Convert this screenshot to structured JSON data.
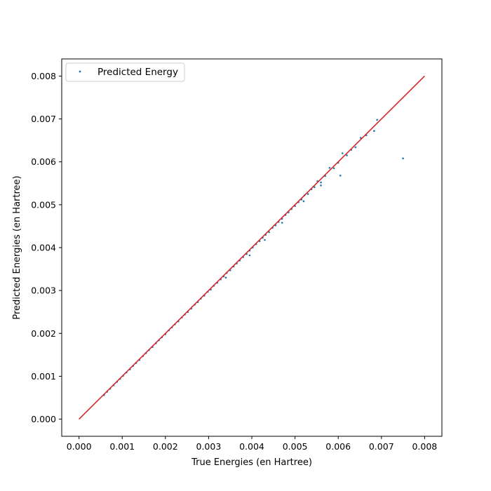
{
  "chart_data": {
    "type": "scatter",
    "title": "",
    "xlabel": "True Energies (en Hartree)",
    "ylabel": "Predicted Energies (en Hartree)",
    "xlim": [
      -0.0004,
      0.0084
    ],
    "ylim": [
      -0.0004,
      0.0084
    ],
    "xticks": [
      0.0,
      0.001,
      0.002,
      0.003,
      0.004,
      0.005,
      0.006,
      0.007,
      0.008
    ],
    "yticks": [
      0.0,
      0.001,
      0.002,
      0.003,
      0.004,
      0.005,
      0.006,
      0.007,
      0.008
    ],
    "xtick_labels": [
      "0.000",
      "0.001",
      "0.002",
      "0.003",
      "0.004",
      "0.005",
      "0.006",
      "0.007",
      "0.008"
    ],
    "ytick_labels": [
      "0.000",
      "0.001",
      "0.002",
      "0.003",
      "0.004",
      "0.005",
      "0.006",
      "0.007",
      "0.008"
    ],
    "grid": false,
    "legend": {
      "placement": "top-left",
      "entries": [
        "Predicted Energy"
      ]
    },
    "series": [
      {
        "name": "Predicted Energy",
        "kind": "scatter",
        "color": "#1f77b4",
        "points": [
          [
            0.00058,
            0.00056
          ],
          [
            0.00065,
            0.00064
          ],
          [
            0.00072,
            0.00071
          ],
          [
            0.0008,
            0.00079
          ],
          [
            0.00088,
            0.00087
          ],
          [
            0.00095,
            0.00094
          ],
          [
            0.00102,
            0.00101
          ],
          [
            0.0011,
            0.00109
          ],
          [
            0.00118,
            0.00116
          ],
          [
            0.00125,
            0.00124
          ],
          [
            0.00132,
            0.00131
          ],
          [
            0.0014,
            0.00138
          ],
          [
            0.00148,
            0.00147
          ],
          [
            0.00155,
            0.00154
          ],
          [
            0.00162,
            0.00161
          ],
          [
            0.0017,
            0.00168
          ],
          [
            0.00178,
            0.00177
          ],
          [
            0.00185,
            0.00184
          ],
          [
            0.00192,
            0.00191
          ],
          [
            0.002,
            0.00198
          ],
          [
            0.00208,
            0.00207
          ],
          [
            0.00215,
            0.00214
          ],
          [
            0.00222,
            0.00221
          ],
          [
            0.0023,
            0.00228
          ],
          [
            0.00238,
            0.00237
          ],
          [
            0.00245,
            0.00244
          ],
          [
            0.00252,
            0.0025
          ],
          [
            0.0026,
            0.00258
          ],
          [
            0.00268,
            0.00267
          ],
          [
            0.00275,
            0.00273
          ],
          [
            0.00282,
            0.00281
          ],
          [
            0.0029,
            0.00288
          ],
          [
            0.00298,
            0.00297
          ],
          [
            0.00305,
            0.00302
          ],
          [
            0.00312,
            0.00311
          ],
          [
            0.0032,
            0.00318
          ],
          [
            0.00328,
            0.00326
          ],
          [
            0.00335,
            0.00333
          ],
          [
            0.00342,
            0.00341
          ],
          [
            0.0035,
            0.00347
          ],
          [
            0.00358,
            0.00356
          ],
          [
            0.00365,
            0.00363
          ],
          [
            0.00372,
            0.0037
          ],
          [
            0.0038,
            0.00378
          ],
          [
            0.00388,
            0.00385
          ],
          [
            0.00395,
            0.00393
          ],
          [
            0.00402,
            0.004
          ],
          [
            0.0041,
            0.00408
          ],
          [
            0.00418,
            0.00415
          ],
          [
            0.00425,
            0.00423
          ],
          [
            0.00432,
            0.0043
          ],
          [
            0.0044,
            0.00436
          ],
          [
            0.00448,
            0.00446
          ],
          [
            0.00455,
            0.00452
          ],
          [
            0.00462,
            0.0046
          ],
          [
            0.0047,
            0.00467
          ],
          [
            0.00478,
            0.00476
          ],
          [
            0.00485,
            0.00482
          ],
          [
            0.00492,
            0.0049
          ],
          [
            0.005,
            0.00497
          ],
          [
            0.00508,
            0.00506
          ],
          [
            0.00515,
            0.00512
          ],
          [
            0.00522,
            0.00522
          ],
          [
            0.0053,
            0.00525
          ],
          [
            0.00538,
            0.00536
          ],
          [
            0.00545,
            0.00541
          ],
          [
            0.00552,
            0.00555
          ],
          [
            0.0056,
            0.00552
          ],
          [
            0.0057,
            0.00567
          ],
          [
            0.0058,
            0.00586
          ],
          [
            0.0059,
            0.00585
          ],
          [
            0.006,
            0.00598
          ],
          [
            0.0061,
            0.0062
          ],
          [
            0.0062,
            0.00615
          ],
          [
            0.0063,
            0.00628
          ],
          [
            0.0064,
            0.00634
          ],
          [
            0.00652,
            0.00656
          ],
          [
            0.00665,
            0.00662
          ],
          [
            0.0069,
            0.00698
          ],
          [
            0.00683,
            0.00672
          ],
          [
            0.00605,
            0.00568
          ],
          [
            0.0075,
            0.00608
          ],
          [
            0.0047,
            0.00458
          ],
          [
            0.0043,
            0.00418
          ],
          [
            0.00395,
            0.00382
          ],
          [
            0.0034,
            0.0033
          ],
          [
            0.0056,
            0.00545
          ],
          [
            0.0052,
            0.00508
          ]
        ]
      },
      {
        "name": "",
        "kind": "line",
        "color": "#d62728",
        "points": [
          [
            0.0,
            0.0
          ],
          [
            0.008,
            0.008
          ]
        ]
      }
    ]
  }
}
